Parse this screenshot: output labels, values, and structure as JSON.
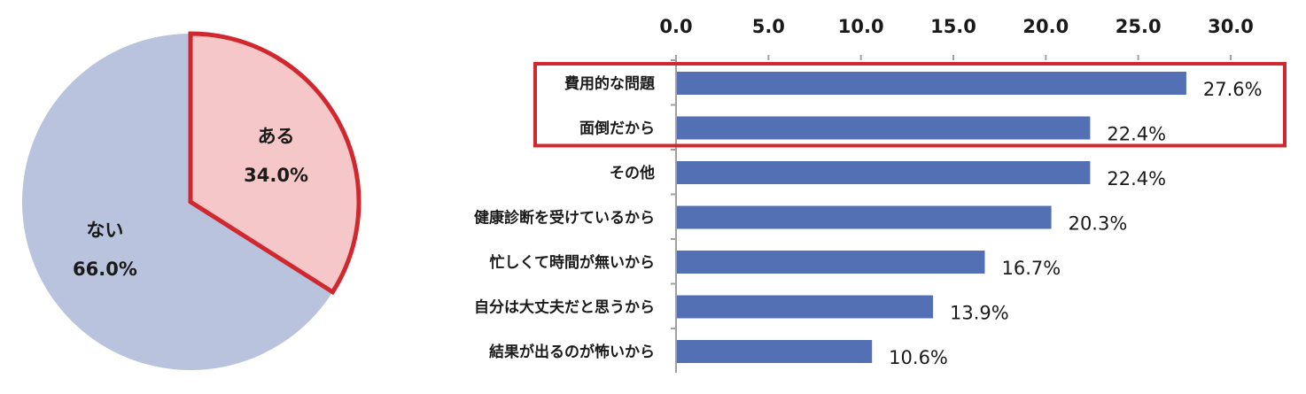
{
  "colors": {
    "pie_yes": "#f5c7c9",
    "pie_no": "#b9c3de",
    "highlight": "#d0282e",
    "bar": "#5470b4",
    "axis": "#a0a0a0"
  },
  "chart_data": [
    {
      "type": "pie",
      "slices": [
        {
          "label": "ある",
          "value": 34.0,
          "display": "34.0%",
          "highlighted": true
        },
        {
          "label": "ない",
          "value": 66.0,
          "display": "66.0%",
          "highlighted": false
        }
      ],
      "start": "top",
      "direction": "clockwise"
    },
    {
      "type": "bar",
      "orientation": "horizontal",
      "categories": [
        "費用的な問題",
        "面倒だから",
        "その他",
        "健康診断を受けているから",
        "忙しくて時間が無いから",
        "自分は大丈夫だと思うから",
        "結果が出るのが怖いから"
      ],
      "values": [
        27.6,
        22.4,
        22.4,
        20.3,
        16.7,
        13.9,
        10.6
      ],
      "value_labels": [
        "27.6%",
        "22.4%",
        "22.4%",
        "20.3%",
        "16.7%",
        "13.9%",
        "10.6%"
      ],
      "xlim": [
        0,
        30
      ],
      "xticks": [
        "0.0",
        "5.0",
        "10.0",
        "15.0",
        "20.0",
        "25.0",
        "30.0"
      ],
      "xaxis_position": "top",
      "highlighted_categories": [
        "費用的な問題",
        "面倒だから"
      ]
    }
  ]
}
